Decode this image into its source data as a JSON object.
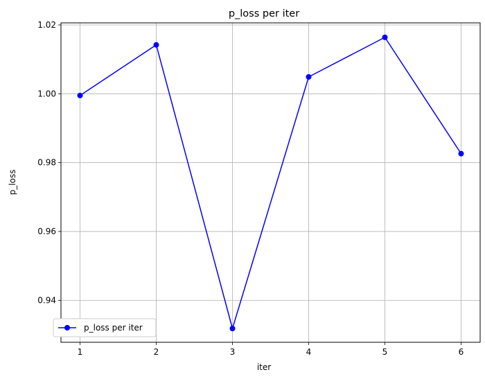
{
  "chart_data": {
    "type": "line",
    "title": "p_loss per iter",
    "xlabel": "iter",
    "ylabel": "p_loss",
    "x": [
      1,
      2,
      3,
      4,
      5,
      6
    ],
    "xticks": [
      "1",
      "2",
      "3",
      "4",
      "5",
      "6"
    ],
    "yticks": [
      "0.94",
      "0.96",
      "0.98",
      "1.00",
      "1.02"
    ],
    "ytick_values": [
      0.94,
      0.96,
      0.98,
      1.0,
      1.02
    ],
    "xlim": [
      0.75,
      6.25
    ],
    "ylim": [
      0.9278,
      1.0206
    ],
    "grid": true,
    "legend_position": "lower left",
    "series": [
      {
        "name": "p_loss per iter",
        "color": "#0000ff",
        "marker": "circle",
        "values": [
          0.9995,
          1.0142,
          0.9318,
          1.0049,
          1.0164,
          0.9826
        ]
      }
    ]
  }
}
